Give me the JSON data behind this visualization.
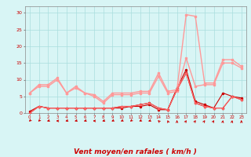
{
  "x": [
    0,
    1,
    2,
    3,
    4,
    5,
    6,
    7,
    8,
    9,
    10,
    11,
    12,
    13,
    14,
    15,
    16,
    17,
    18,
    19,
    20,
    21,
    22,
    23
  ],
  "series": [
    {
      "values": [
        0.5,
        2,
        1.5,
        1.5,
        1.5,
        1.5,
        1.5,
        1.5,
        1.5,
        1.5,
        1.5,
        2,
        2,
        2.5,
        1,
        1,
        7,
        12,
        3,
        2,
        1.5,
        6,
        5,
        4.5
      ],
      "color": "#cc0000",
      "lw": 0.8,
      "marker": "o",
      "ms": 1.5
    },
    {
      "values": [
        0,
        2,
        1.5,
        1.5,
        1.5,
        1.5,
        1.5,
        1.5,
        1.5,
        1.5,
        2,
        2,
        2.5,
        3,
        1.5,
        1,
        7.5,
        13,
        3.5,
        2.5,
        1.5,
        1.5,
        5,
        4
      ],
      "color": "#cc0000",
      "lw": 0.8,
      "marker": "o",
      "ms": 1.5
    },
    {
      "values": [
        6,
        8.5,
        8.5,
        10.5,
        6,
        8,
        6,
        5,
        3,
        5.5,
        5.5,
        5.5,
        6,
        6,
        11,
        6,
        6.5,
        16.5,
        8,
        8.5,
        8.5,
        15,
        15,
        13.5
      ],
      "color": "#ff9999",
      "lw": 1.0,
      "marker": "s",
      "ms": 1.5
    },
    {
      "values": [
        6,
        8,
        8,
        10,
        6,
        7.5,
        6,
        5.5,
        3.5,
        6,
        6,
        6,
        6.5,
        6.5,
        12,
        6.5,
        7,
        29.5,
        29,
        9,
        9,
        16,
        16,
        14
      ],
      "color": "#ff9999",
      "lw": 1.0,
      "marker": "s",
      "ms": 1.5
    },
    {
      "values": [
        0,
        2,
        1.5,
        1.5,
        1.5,
        1.5,
        1.5,
        1.5,
        1.5,
        1.5,
        2,
        2,
        2.5,
        3,
        1.5,
        1,
        7,
        12,
        3,
        2,
        1.5,
        1.5,
        5,
        4
      ],
      "color": "#ff6666",
      "lw": 0.8,
      "marker": "^",
      "ms": 1.5
    }
  ],
  "arrow_angles_deg": [
    225,
    225,
    250,
    270,
    250,
    250,
    250,
    270,
    250,
    240,
    240,
    230,
    240,
    250,
    315,
    340,
    0,
    30,
    30,
    30,
    30,
    10,
    10,
    0
  ],
  "bg_color": "#d8f5f5",
  "grid_color": "#aadddd",
  "axis_color": "#cc0000",
  "xlabel": "Vent moyen/en rafales ( km/h )",
  "xlabel_fontsize": 6.5,
  "yticks": [
    0,
    5,
    10,
    15,
    20,
    25,
    30
  ],
  "xticks": [
    0,
    1,
    2,
    3,
    4,
    5,
    6,
    7,
    8,
    9,
    10,
    11,
    12,
    13,
    14,
    15,
    16,
    17,
    18,
    19,
    20,
    21,
    22,
    23
  ],
  "ylim": [
    0,
    32
  ],
  "xlim": [
    -0.5,
    23.5
  ]
}
